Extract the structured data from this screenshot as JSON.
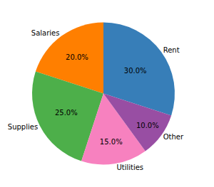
{
  "chart_data": {
    "type": "pie",
    "categories": [
      "Rent",
      "Salaries",
      "Supplies",
      "Utilities",
      "Other"
    ],
    "values": [
      30,
      20,
      25,
      15,
      10
    ],
    "value_labels": [
      "30.0%",
      "20.0%",
      "25.0%",
      "15.0%",
      "10.0%"
    ],
    "colors": [
      "#377eb8",
      "#ff7f00",
      "#4daf4a",
      "#f781bf",
      "#984ea3"
    ],
    "data_labels": true
  }
}
